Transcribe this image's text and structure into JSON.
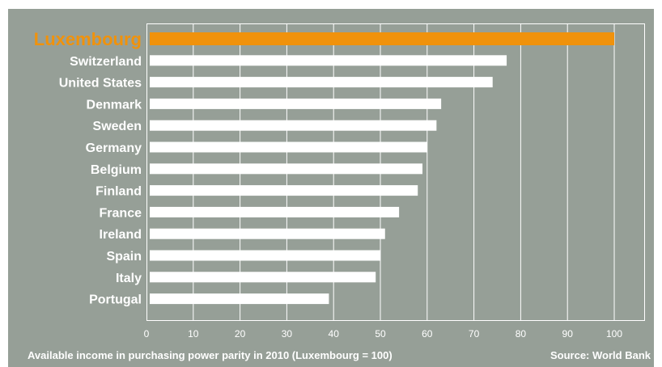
{
  "chart_data": {
    "type": "bar",
    "orientation": "horizontal",
    "categories": [
      "Luxembourg",
      "Switzerland",
      "United States",
      "Denmark",
      "Sweden",
      "Germany",
      "Belgium",
      "Finland",
      "France",
      "Ireland",
      "Spain",
      "Italy",
      "Portugal"
    ],
    "values": [
      100,
      77,
      74,
      63,
      62,
      60,
      59,
      58,
      54,
      51,
      50,
      49,
      39
    ],
    "highlight_category": "Luxembourg",
    "xlim": [
      0,
      107
    ],
    "xticks": [
      0,
      10,
      20,
      30,
      40,
      50,
      60,
      70,
      80,
      90,
      100
    ],
    "grid": "vertical",
    "caption": "Available income in purchasing power parity in 2010 (Luxembourg = 100)",
    "source": "Source: World Bank"
  },
  "colors": {
    "background": "#969f97",
    "bar": "#ffffff",
    "highlight": "#f0920c",
    "text": "#ffffff",
    "grid": "#ffffff"
  }
}
